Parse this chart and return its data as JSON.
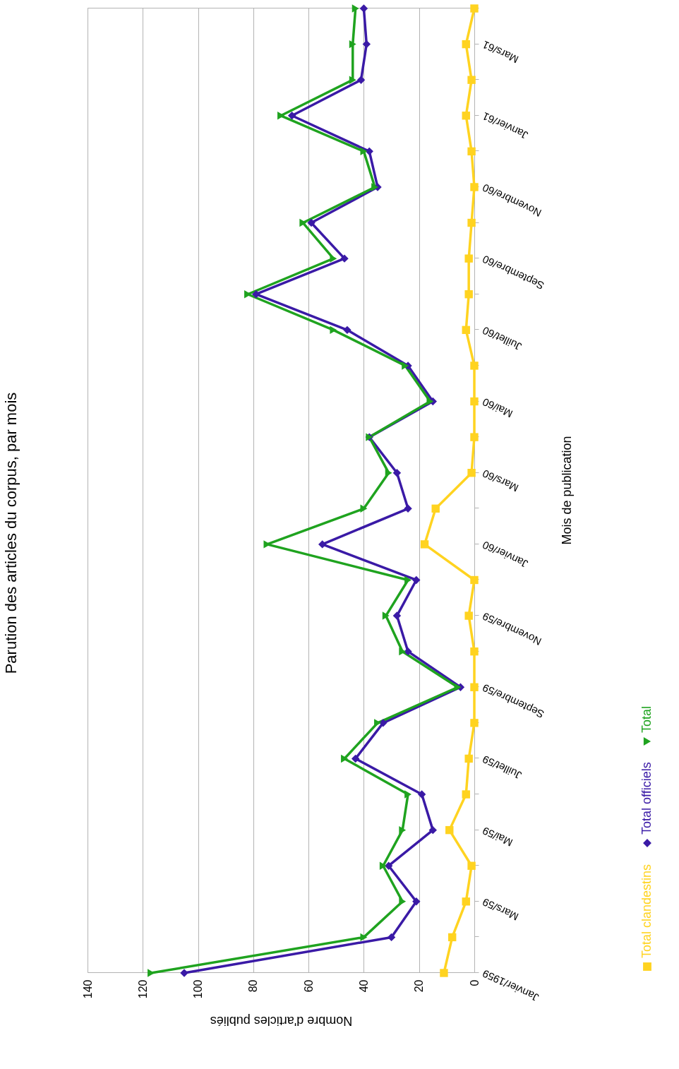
{
  "chart_data": {
    "type": "line",
    "orientation": "horizontal",
    "title": "Parution des articles du corpus, par mois",
    "xlabel": "Nombre d'articles publiés",
    "ylabel": "Mois de publication",
    "categories": [
      null,
      "Mars/61",
      null,
      "Janvier/61",
      null,
      "Novembre/60",
      null,
      "Septembre/60",
      null,
      "Juillet/60",
      null,
      "Mai/60",
      null,
      "Mars/60",
      null,
      "Janvier/60",
      null,
      "Novembre/59",
      null,
      "Septembre/59",
      null,
      "Juillet/59",
      null,
      "Mai/59",
      null,
      "Mars/59",
      null,
      "Janvier/1959"
    ],
    "series": [
      {
        "name": "Total clandestins",
        "color": "#ffd320",
        "marker": "square",
        "values": [
          0,
          3,
          1,
          3,
          1,
          0,
          1,
          2,
          2,
          3,
          0,
          0,
          0,
          1,
          14,
          18,
          0,
          2,
          0,
          0,
          0,
          2,
          3,
          9,
          1,
          3,
          8,
          11
        ]
      },
      {
        "name": "Total officiels",
        "color": "#3a1aa6",
        "marker": "diamond",
        "values": [
          40,
          39,
          41,
          66,
          38,
          35,
          59,
          47,
          79,
          46,
          24,
          15,
          38,
          28,
          24,
          55,
          21,
          28,
          24,
          5,
          33,
          43,
          19,
          15,
          31,
          21,
          30,
          105
        ]
      },
      {
        "name": "Total",
        "color": "#1fa31f",
        "marker": "triangle",
        "values": [
          43,
          44,
          44,
          70,
          40,
          36,
          62,
          51,
          82,
          51,
          25,
          16,
          38,
          31,
          40,
          75,
          24,
          32,
          26,
          6,
          35,
          47,
          24,
          26,
          33,
          26,
          40,
          117
        ]
      }
    ],
    "xlim": [
      140,
      0
    ],
    "xticks": [
      140,
      120,
      100,
      80,
      60,
      40,
      20,
      0
    ],
    "grid": "x",
    "legend": "right",
    "line_style": "solid"
  }
}
